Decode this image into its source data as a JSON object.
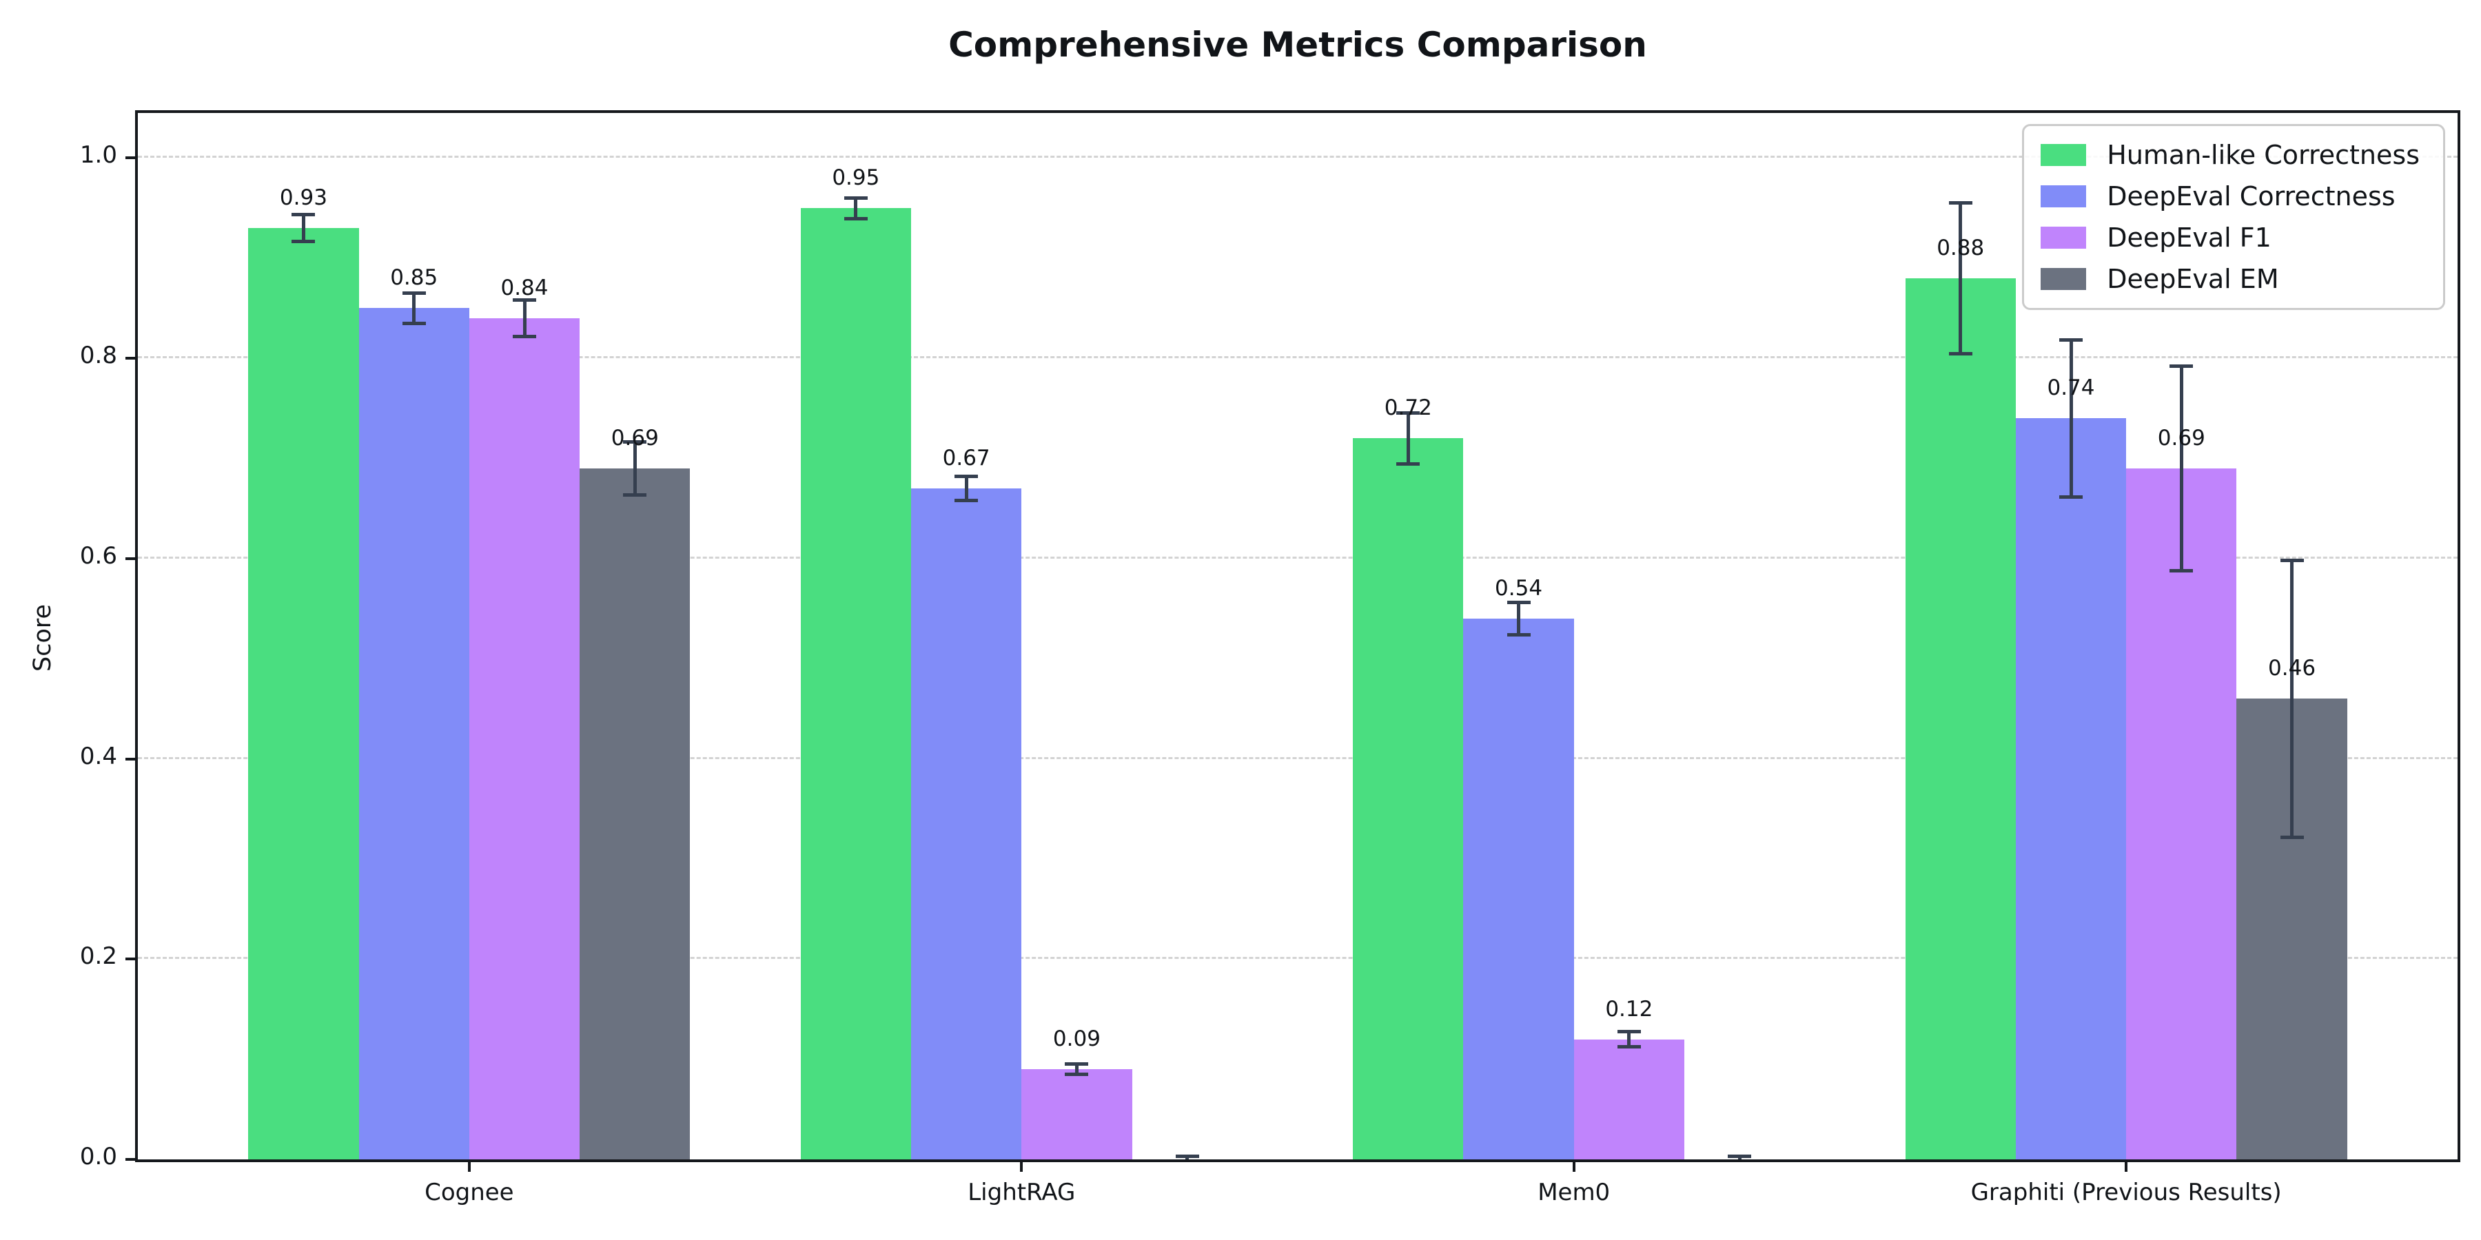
{
  "chart_data": {
    "type": "bar",
    "title": "Comprehensive Metrics Comparison",
    "xlabel": "",
    "ylabel": "Score",
    "categories": [
      "Cognee",
      "LightRAG",
      "Mem0",
      "Graphiti (Previous Results)"
    ],
    "series": [
      {
        "name": "Human-like Correctness",
        "color": "#4ade80",
        "values": [
          0.93,
          0.95,
          0.72,
          0.88
        ],
        "errors": [
          0.015,
          0.012,
          0.027,
          0.077
        ],
        "labels": [
          "0.93",
          "0.95",
          "0.72",
          "0.88"
        ]
      },
      {
        "name": "DeepEval Correctness",
        "color": "#818cf8",
        "values": [
          0.85,
          0.67,
          0.54,
          0.74
        ],
        "errors": [
          0.017,
          0.014,
          0.018,
          0.08
        ],
        "labels": [
          "0.85",
          "0.67",
          "0.54",
          "0.74"
        ]
      },
      {
        "name": "DeepEval F1",
        "color": "#c084fc",
        "values": [
          0.84,
          0.09,
          0.12,
          0.69
        ],
        "errors": [
          0.02,
          0.007,
          0.009,
          0.104
        ],
        "labels": [
          "0.84",
          "0.09",
          "0.12",
          "0.69"
        ]
      },
      {
        "name": "DeepEval EM",
        "color": "#6b7280",
        "values": [
          0.69,
          0.0,
          0.0,
          0.46
        ],
        "errors": [
          0.028,
          0.005,
          0.005,
          0.14
        ],
        "labels": [
          "0.69",
          null,
          null,
          "0.46"
        ]
      }
    ],
    "y_ticks": [
      "0.0",
      "0.2",
      "0.4",
      "0.6",
      "0.8",
      "1.0"
    ],
    "ylim": [
      0,
      1.045
    ],
    "grid": "horizontal-dashed",
    "legend_position": "upper right",
    "error_bar_color": "#353f4f",
    "background_color": "#ffffff"
  }
}
